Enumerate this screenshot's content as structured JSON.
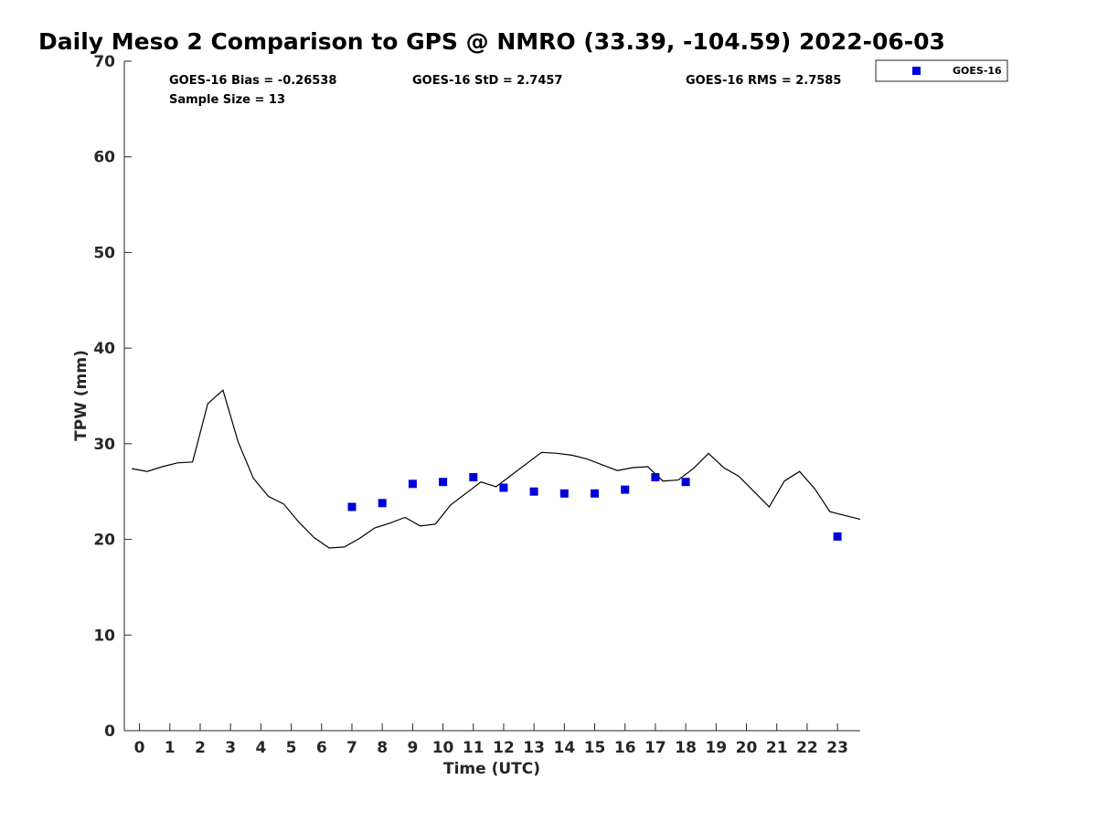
{
  "chart_data": {
    "type": "scatter",
    "title": "Daily Meso 2 Comparison to GPS @ NMRO (33.39, -104.59) 2022-06-03",
    "xlabel": "Time (UTC)",
    "ylabel": "TPW (mm)",
    "xlim": [
      -0.5,
      23.75
    ],
    "ylim": [
      0,
      70
    ],
    "xticks": [
      0,
      1,
      2,
      3,
      4,
      5,
      6,
      7,
      8,
      9,
      10,
      11,
      12,
      13,
      14,
      15,
      16,
      17,
      18,
      19,
      20,
      21,
      22,
      23
    ],
    "yticks": [
      0,
      10,
      20,
      30,
      40,
      50,
      60,
      70
    ],
    "grid": false,
    "legend_position": "top-right",
    "stats": [
      "GOES-16 Bias = -0.26538",
      "GOES-16 StD = 2.7457",
      "GOES-16 RMS = 2.7585",
      "Sample Size = 13"
    ],
    "series": [
      {
        "kind": "line",
        "color": "#000000",
        "x": [
          -0.25,
          0.25,
          0.75,
          1.25,
          1.75,
          2.25,
          2.75,
          3.25,
          3.75,
          4.25,
          4.75,
          5.25,
          5.75,
          6.25,
          6.75,
          7.25,
          7.75,
          8.25,
          8.75,
          9.25,
          9.75,
          10.25,
          10.75,
          11.25,
          11.75,
          12.25,
          12.75,
          13.25,
          13.75,
          14.25,
          14.75,
          15.25,
          15.75,
          16.25,
          16.75,
          17.25,
          17.75,
          18.25,
          18.75,
          19.25,
          19.75,
          20.25,
          20.75,
          21.25,
          21.75,
          22.25,
          22.75,
          23.25,
          23.75
        ],
        "y": [
          27.4,
          27.1,
          27.6,
          28.0,
          28.1,
          34.2,
          35.6,
          30.2,
          26.4,
          24.5,
          23.7,
          21.8,
          20.2,
          19.1,
          19.2,
          20.1,
          21.2,
          21.7,
          22.3,
          21.4,
          21.6,
          23.6,
          24.8,
          26.0,
          25.5,
          26.7,
          27.9,
          29.1,
          29.0,
          28.8,
          28.4,
          27.8,
          27.2,
          27.5,
          27.6,
          26.1,
          26.2,
          27.4,
          29.0,
          27.5,
          26.6,
          25.0,
          23.4,
          26.1,
          27.1,
          25.3,
          22.9,
          22.5,
          22.1
        ]
      },
      {
        "name": "GOES-16",
        "kind": "scatter",
        "color": "#0000d9",
        "x": [
          7,
          8,
          9,
          10,
          11,
          12,
          13,
          14,
          15,
          16,
          17,
          18,
          23
        ],
        "y": [
          23.4,
          23.8,
          25.8,
          26.0,
          26.5,
          25.4,
          25.0,
          24.8,
          24.8,
          25.2,
          26.5,
          26.0,
          20.3
        ]
      }
    ]
  }
}
